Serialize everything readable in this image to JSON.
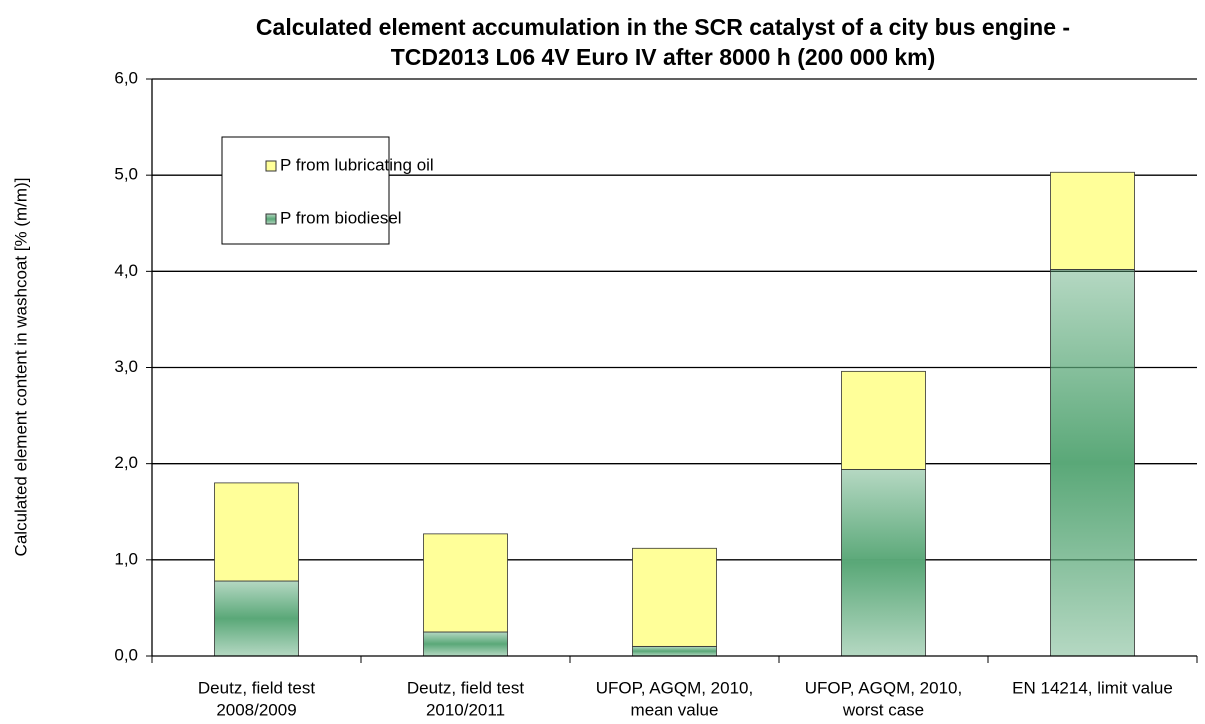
{
  "chart_data": {
    "type": "stacked-bar",
    "title": [
      "Calculated element accumulation in the SCR catalyst of a city bus engine -",
      "TCD2013 L06 4V Euro IV after 8000 h (200 000 km)"
    ],
    "y_label": "Calculated element content in washcoat [% (m/m)]",
    "categories": [
      [
        "Deutz, field test",
        "2008/2009"
      ],
      [
        "Deutz, field test",
        "2010/2011"
      ],
      [
        "UFOP, AGQM, 2010,",
        "mean value"
      ],
      [
        "UFOP, AGQM, 2010,",
        "worst case"
      ],
      [
        "EN 14214, limit value"
      ]
    ],
    "series": [
      {
        "name": "P from biodiesel",
        "color": "#5aa878",
        "values": [
          0.78,
          0.25,
          0.1,
          1.94,
          4.02
        ]
      },
      {
        "name": "P from lubricating oil",
        "color": "#ffff99",
        "values": [
          1.02,
          1.02,
          1.02,
          1.02,
          1.01
        ]
      }
    ],
    "ylim": [
      0,
      6
    ],
    "yticks": [
      {
        "value": 0,
        "label": "0,0"
      },
      {
        "value": 1,
        "label": "1,0"
      },
      {
        "value": 2,
        "label": "2,0"
      },
      {
        "value": 3,
        "label": "3,0"
      },
      {
        "value": 4,
        "label": "4,0"
      },
      {
        "value": 5,
        "label": "5,0"
      },
      {
        "value": 6,
        "label": "6,0"
      }
    ],
    "grid": true
  }
}
